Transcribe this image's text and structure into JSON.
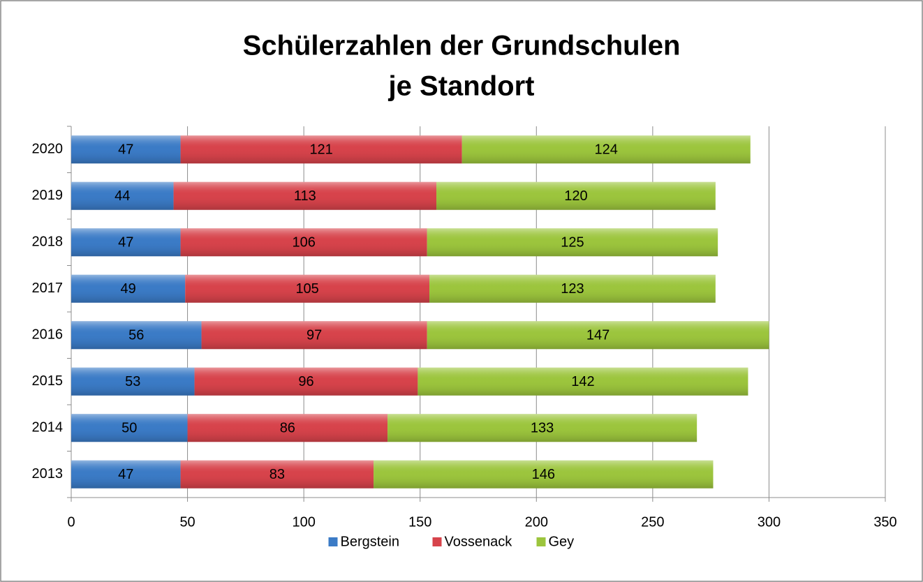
{
  "chart_data": {
    "type": "stacked_bar_horizontal",
    "title": [
      "Schülerzahlen der Grundschulen",
      "je Standort"
    ],
    "categories": [
      "2013",
      "2014",
      "2015",
      "2016",
      "2017",
      "2018",
      "2019",
      "2020"
    ],
    "series": [
      {
        "name": "Bergstein",
        "color": "#3b7bc6",
        "values": [
          47,
          50,
          53,
          56,
          49,
          47,
          44,
          47
        ]
      },
      {
        "name": "Vossenack",
        "color": "#d7434b",
        "values": [
          83,
          86,
          96,
          97,
          105,
          106,
          113,
          121
        ]
      },
      {
        "name": "Gey",
        "color": "#9cc53d",
        "values": [
          146,
          133,
          142,
          147,
          123,
          125,
          120,
          124
        ]
      }
    ],
    "xlim": [
      0,
      350
    ],
    "xticks": [
      0,
      50,
      100,
      150,
      200,
      250,
      300,
      350
    ],
    "grid": true,
    "legend": "bottom"
  }
}
